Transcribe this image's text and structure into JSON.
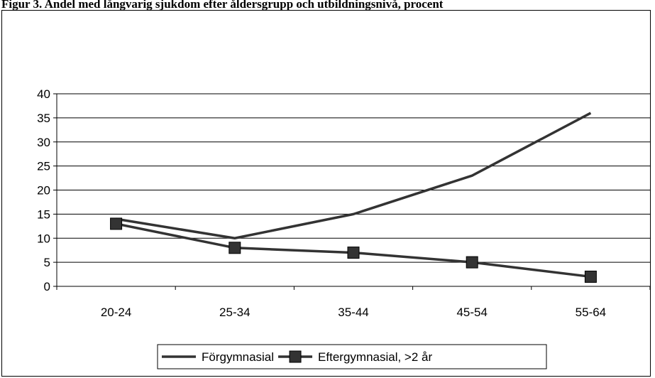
{
  "page": {
    "title": "Figur 3. Andel med långvarig sjukdom efter åldersgrupp och utbildningsnivå, procent"
  },
  "chart_data": {
    "type": "line",
    "title": "",
    "xlabel": "",
    "ylabel": "",
    "categories": [
      "20-24",
      "25-34",
      "35-44",
      "45-54",
      "55-64"
    ],
    "ylim": [
      0,
      40
    ],
    "yticks": [
      0,
      5,
      10,
      15,
      20,
      25,
      30,
      35,
      40
    ],
    "grid": true,
    "legend_position": "bottom",
    "series": [
      {
        "name": "Förgymnasial",
        "values": [
          14,
          10,
          15,
          23,
          36
        ],
        "color": "#333333",
        "marker": "none"
      },
      {
        "name": "Eftergymnasial, >2 år",
        "values": [
          13,
          8,
          7,
          5,
          2
        ],
        "color": "#333333",
        "marker": "square"
      }
    ]
  }
}
